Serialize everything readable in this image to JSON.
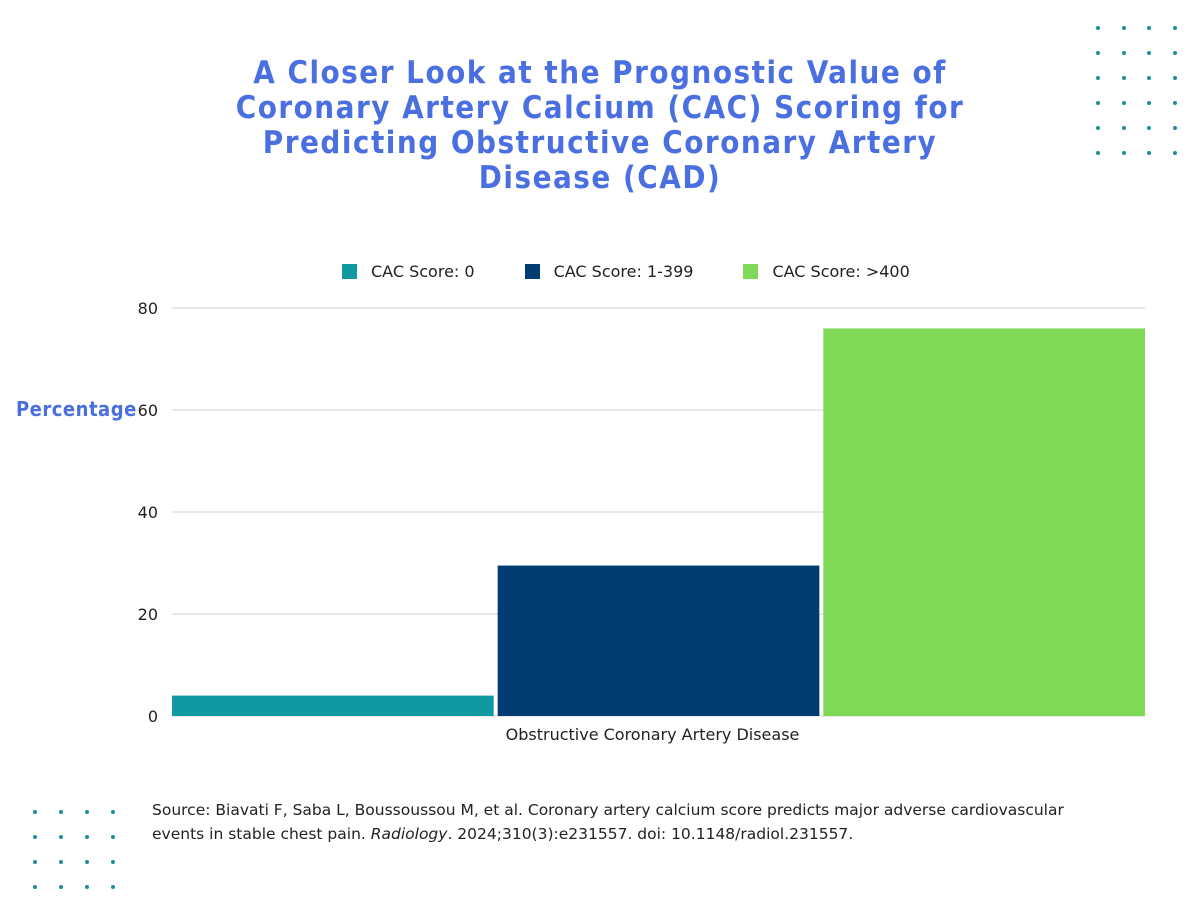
{
  "colors": {
    "title": "#4a6fe0",
    "accent_dots": "#1b8f96",
    "grid": "#d0d0d0",
    "axis_text": "#222222"
  },
  "chart_data": {
    "type": "bar",
    "title": "A Closer Look at the Prognostic Value of Coronary Artery Calcium (CAC) Scoring for Predicting Obstructive Coronary Artery Disease (CAD)",
    "categories": [
      "Obstructive Coronary Artery Disease"
    ],
    "series": [
      {
        "name": "CAC Score: 0",
        "values": [
          4
        ],
        "color": "#0e9aa0"
      },
      {
        "name": "CAC Score: 1-399",
        "values": [
          29.5
        ],
        "color": "#013d72"
      },
      {
        "name": "CAC Score: >400",
        "values": [
          76
        ],
        "color": "#7fd957"
      }
    ],
    "xlabel": "",
    "ylabel": "Percentage",
    "ylim": [
      0,
      80
    ],
    "yticks": [
      "0",
      "20",
      "40",
      "60",
      "80"
    ],
    "grid": true,
    "legend_position": "top"
  },
  "source": {
    "prefix": "Source: Biavati F, Saba L, Boussoussou M, et al. Coronary artery calcium score predicts major adverse cardiovascular events in stable chest pain. ",
    "journal": "Radiology",
    "suffix": ". 2024;310(3):e231557. doi: 10.1148/radiol.231557."
  }
}
